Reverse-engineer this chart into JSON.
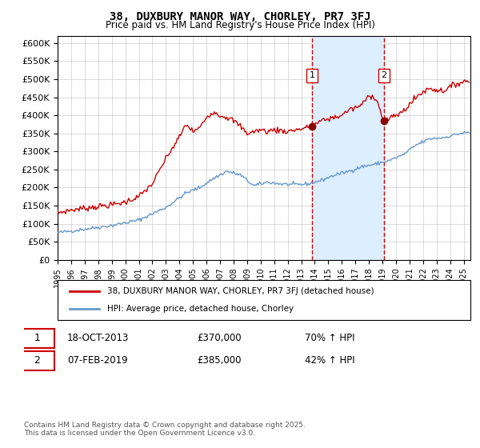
{
  "title": "38, DUXBURY MANOR WAY, CHORLEY, PR7 3FJ",
  "subtitle": "Price paid vs. HM Land Registry's House Price Index (HPI)",
  "legend_label_red": "38, DUXBURY MANOR WAY, CHORLEY, PR7 3FJ (detached house)",
  "legend_label_blue": "HPI: Average price, detached house, Chorley",
  "transaction1_label": "1",
  "transaction1_date": "18-OCT-2013",
  "transaction1_price": "£370,000",
  "transaction1_pct": "70% ↑ HPI",
  "transaction2_label": "2",
  "transaction2_date": "07-FEB-2019",
  "transaction2_price": "£385,000",
  "transaction2_pct": "42% ↑ HPI",
  "footer": "Contains HM Land Registry data © Crown copyright and database right 2025.\nThis data is licensed under the Open Government Licence v3.0.",
  "background_color": "#ffffff",
  "plot_bg_color": "#ffffff",
  "grid_color": "#cccccc",
  "red_line_color": "#cc0000",
  "blue_line_color": "#6699cc",
  "shade_color": "#ddeeff",
  "dashed_line_color": "#cc0000",
  "ylim": [
    0,
    620000
  ],
  "yticks": [
    0,
    50000,
    100000,
    150000,
    200000,
    250000,
    300000,
    350000,
    400000,
    450000,
    500000,
    550000,
    600000
  ],
  "transaction1_x": 2013.8,
  "transaction2_x": 2019.1
}
